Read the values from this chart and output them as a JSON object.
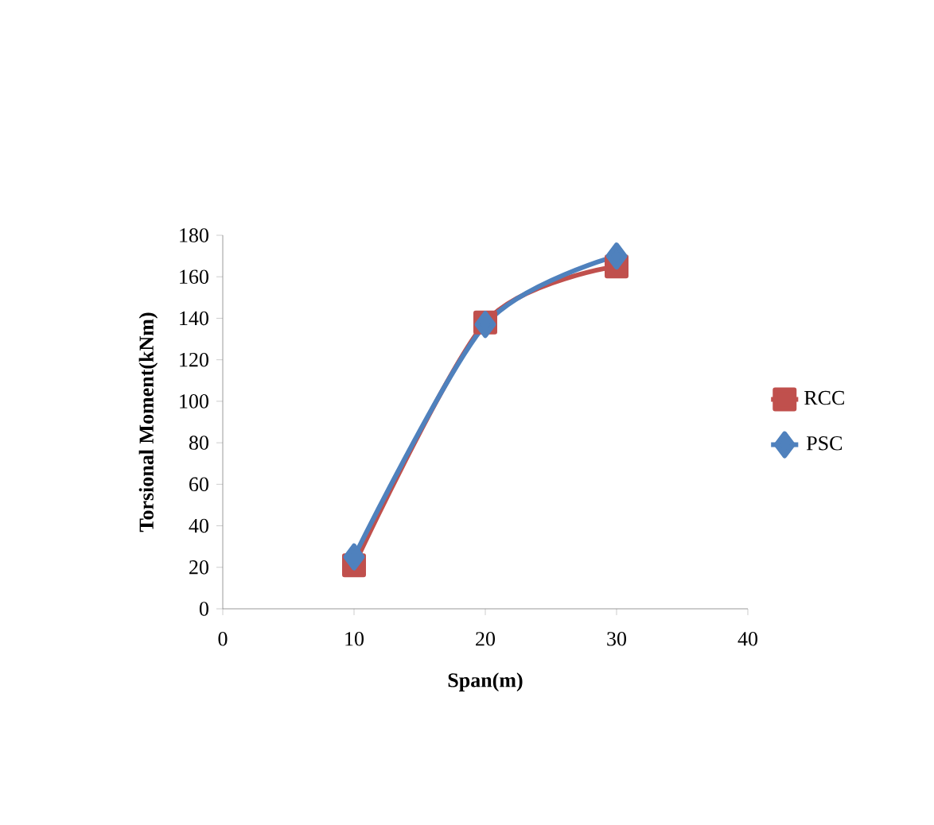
{
  "chart_data": {
    "type": "line",
    "xlabel": "Span(m)",
    "ylabel": "Torsional Moment(kNm)",
    "xlim": [
      0,
      40
    ],
    "xticks": [
      0,
      10,
      20,
      30,
      40
    ],
    "ylim": [
      0,
      180
    ],
    "yticks": [
      0,
      20,
      40,
      60,
      80,
      100,
      120,
      140,
      160,
      180
    ],
    "x": [
      10,
      20,
      30
    ],
    "series": [
      {
        "name": "RCC",
        "color": "#c0504d",
        "marker": "square",
        "values": [
          21,
          138,
          165
        ]
      },
      {
        "name": "PSC",
        "color": "#4f81bd",
        "marker": "diamond",
        "values": [
          25,
          137,
          170
        ]
      }
    ],
    "grid": false,
    "legend": "right",
    "line_style": "solid"
  }
}
